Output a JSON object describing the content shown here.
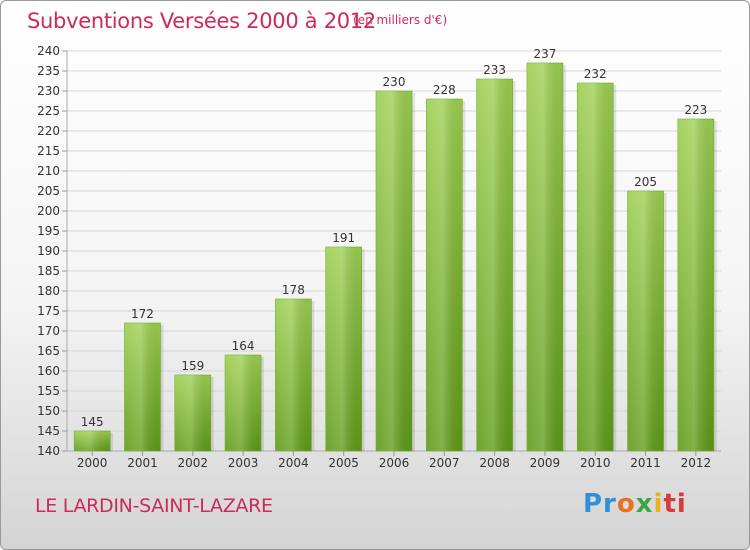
{
  "chart_data": {
    "type": "bar",
    "title": "Subventions Versées 2000 à 2012",
    "unit_note": "(en milliers d'€)",
    "categories": [
      "2000",
      "2001",
      "2002",
      "2003",
      "2004",
      "2005",
      "2006",
      "2007",
      "2008",
      "2009",
      "2010",
      "2011",
      "2012"
    ],
    "values": [
      145,
      172,
      159,
      164,
      178,
      191,
      230,
      228,
      233,
      237,
      232,
      205,
      223
    ],
    "ylim": [
      140,
      240
    ],
    "yticks": [
      140,
      145,
      150,
      155,
      160,
      165,
      170,
      175,
      180,
      185,
      190,
      195,
      200,
      205,
      210,
      215,
      220,
      225,
      230,
      235,
      240
    ],
    "xlabel": "",
    "ylabel": "",
    "grid": "horizontal",
    "bar_color_top": "#9ccf50",
    "bar_color_bottom": "#5e9a16"
  },
  "footer": {
    "town": "LE LARDIN-SAINT-LAZARE",
    "brand": [
      "Pr",
      "o",
      "x",
      "i",
      "ti"
    ]
  },
  "colors": {
    "accent": "#cc2a5a",
    "grid": "#d6d6d6"
  }
}
